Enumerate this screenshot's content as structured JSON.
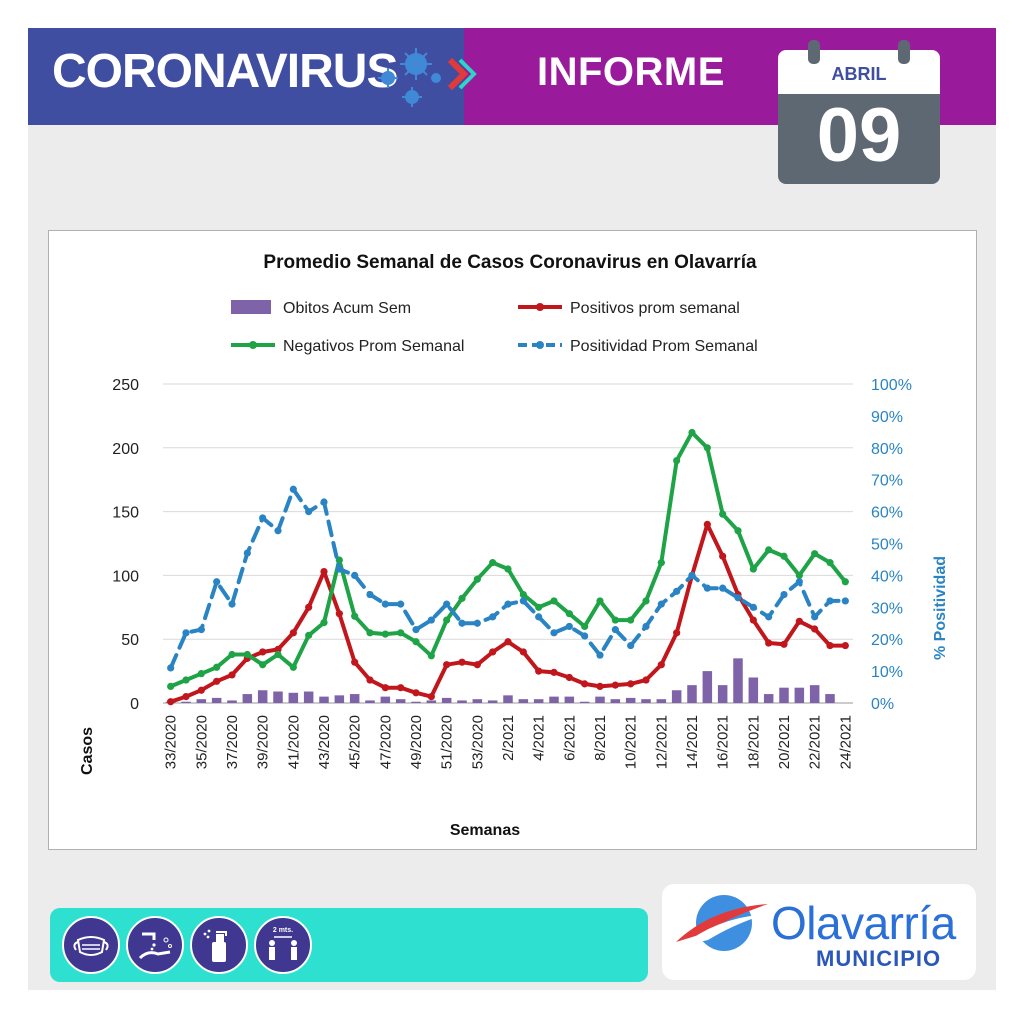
{
  "header": {
    "title": "CORONAVIRUS",
    "section": "INFORME",
    "calendar_month": "ABRIL",
    "calendar_day": "09",
    "colors": {
      "left_band": "#3f4ea1",
      "right_band": "#9a1a9c"
    }
  },
  "chart_data": {
    "type": "bar",
    "title": "Promedio Semanal de Casos Coronavirus en Olavarría",
    "xlabel": "Semanas",
    "ylabel": "Casos",
    "y2label": "% Positividad",
    "ylim": [
      0,
      250
    ],
    "y2lim": [
      0,
      100
    ],
    "yticks": [
      "0",
      "50",
      "100",
      "150",
      "200",
      "250"
    ],
    "y2ticks": [
      "0%",
      "10%",
      "20%",
      "30%",
      "40%",
      "50%",
      "60%",
      "70%",
      "80%",
      "90%",
      "100%"
    ],
    "grid": "horizontal",
    "legend_placement": "top",
    "categories": [
      "33/2020",
      "34/2020",
      "35/2020",
      "36/2020",
      "37/2020",
      "38/2020",
      "39/2020",
      "40/2020",
      "41/2020",
      "42/2020",
      "43/2020",
      "44/2020",
      "45/2020",
      "46/2020",
      "47/2020",
      "48/2020",
      "49/2020",
      "50/2020",
      "51/2020",
      "52/2020",
      "53/2020",
      "1/2021",
      "2/2021",
      "3/2021",
      "4/2021",
      "5/2021",
      "6/2021",
      "7/2021",
      "8/2021",
      "9/2021",
      "10/2021",
      "11/2021",
      "12/2021",
      "13/2021",
      "14/2021",
      "15/2021",
      "16/2021",
      "17/2021",
      "18/2021",
      "19/2021",
      "20/2021",
      "21/2021",
      "22/2021",
      "23/2021",
      "24/2021"
    ],
    "tick_labels": [
      "33/2020",
      "35/2020",
      "37/2020",
      "39/2020",
      "41/2020",
      "43/2020",
      "45/2020",
      "47/2020",
      "49/2020",
      "51/2020",
      "53/2020",
      "2/2021",
      "4/2021",
      "6/2021",
      "8/2021",
      "10/2021",
      "12/2021",
      "14/2021",
      "16/2021",
      "18/2021",
      "20/2021",
      "22/2021",
      "24/2021"
    ],
    "series": [
      {
        "name": "Obitos Acum Sem",
        "type": "bar",
        "axis": "left",
        "color": "#7f63a8",
        "values": [
          1,
          1,
          3,
          4,
          2,
          7,
          10,
          9,
          8,
          9,
          5,
          6,
          7,
          2,
          5,
          3,
          1,
          2,
          4,
          2,
          3,
          2,
          6,
          3,
          3,
          5,
          5,
          1,
          5,
          3,
          4,
          3,
          3,
          10,
          14,
          25,
          14,
          35,
          20,
          7,
          12,
          12,
          14,
          7,
          0
        ]
      },
      {
        "name": "Positivos prom semanal",
        "type": "line",
        "axis": "left",
        "color": "#c0161c",
        "values": [
          1,
          5,
          10,
          17,
          22,
          35,
          40,
          42,
          55,
          75,
          103,
          70,
          32,
          18,
          12,
          12,
          8,
          5,
          30,
          32,
          30,
          40,
          48,
          40,
          25,
          24,
          20,
          15,
          13,
          14,
          15,
          18,
          30,
          55,
          100,
          140,
          115,
          85,
          65,
          47,
          46,
          64,
          58,
          45,
          45
        ]
      },
      {
        "name": "Negativos Prom Semanal",
        "type": "line",
        "axis": "left",
        "color": "#1fa347",
        "values": [
          13,
          18,
          23,
          28,
          38,
          38,
          30,
          38,
          28,
          53,
          63,
          112,
          68,
          55,
          54,
          55,
          48,
          37,
          65,
          82,
          97,
          110,
          105,
          85,
          75,
          80,
          70,
          60,
          80,
          65,
          65,
          80,
          110,
          190,
          212,
          200,
          148,
          135,
          105,
          120,
          115,
          100,
          117,
          110,
          95
        ]
      },
      {
        "name": "Positividad Prom Semanal",
        "type": "line",
        "axis": "right",
        "color": "#2a84c4",
        "dashed": true,
        "values": [
          11,
          22,
          23,
          38,
          31,
          47,
          58,
          54,
          67,
          60,
          63,
          42,
          40,
          34,
          31,
          31,
          23,
          26,
          31,
          25,
          25,
          27,
          31,
          32,
          27,
          22,
          24,
          21,
          15,
          23,
          18,
          24,
          31,
          35,
          40,
          36,
          36,
          33,
          30,
          27,
          34,
          38,
          27,
          32,
          32
        ]
      }
    ]
  },
  "footer": {
    "icons": [
      "face-mask-icon",
      "hand-washing-icon",
      "sanitizer-spray-icon",
      "social-distance-icon"
    ],
    "distance_text": "2 mts.",
    "logo_name": "Olavarría",
    "logo_sub": "MUNICIPIO",
    "colors": {
      "bar": "#2ee0cf",
      "icon_bg": "#3f3790",
      "logo": "#2b6fd8"
    }
  }
}
